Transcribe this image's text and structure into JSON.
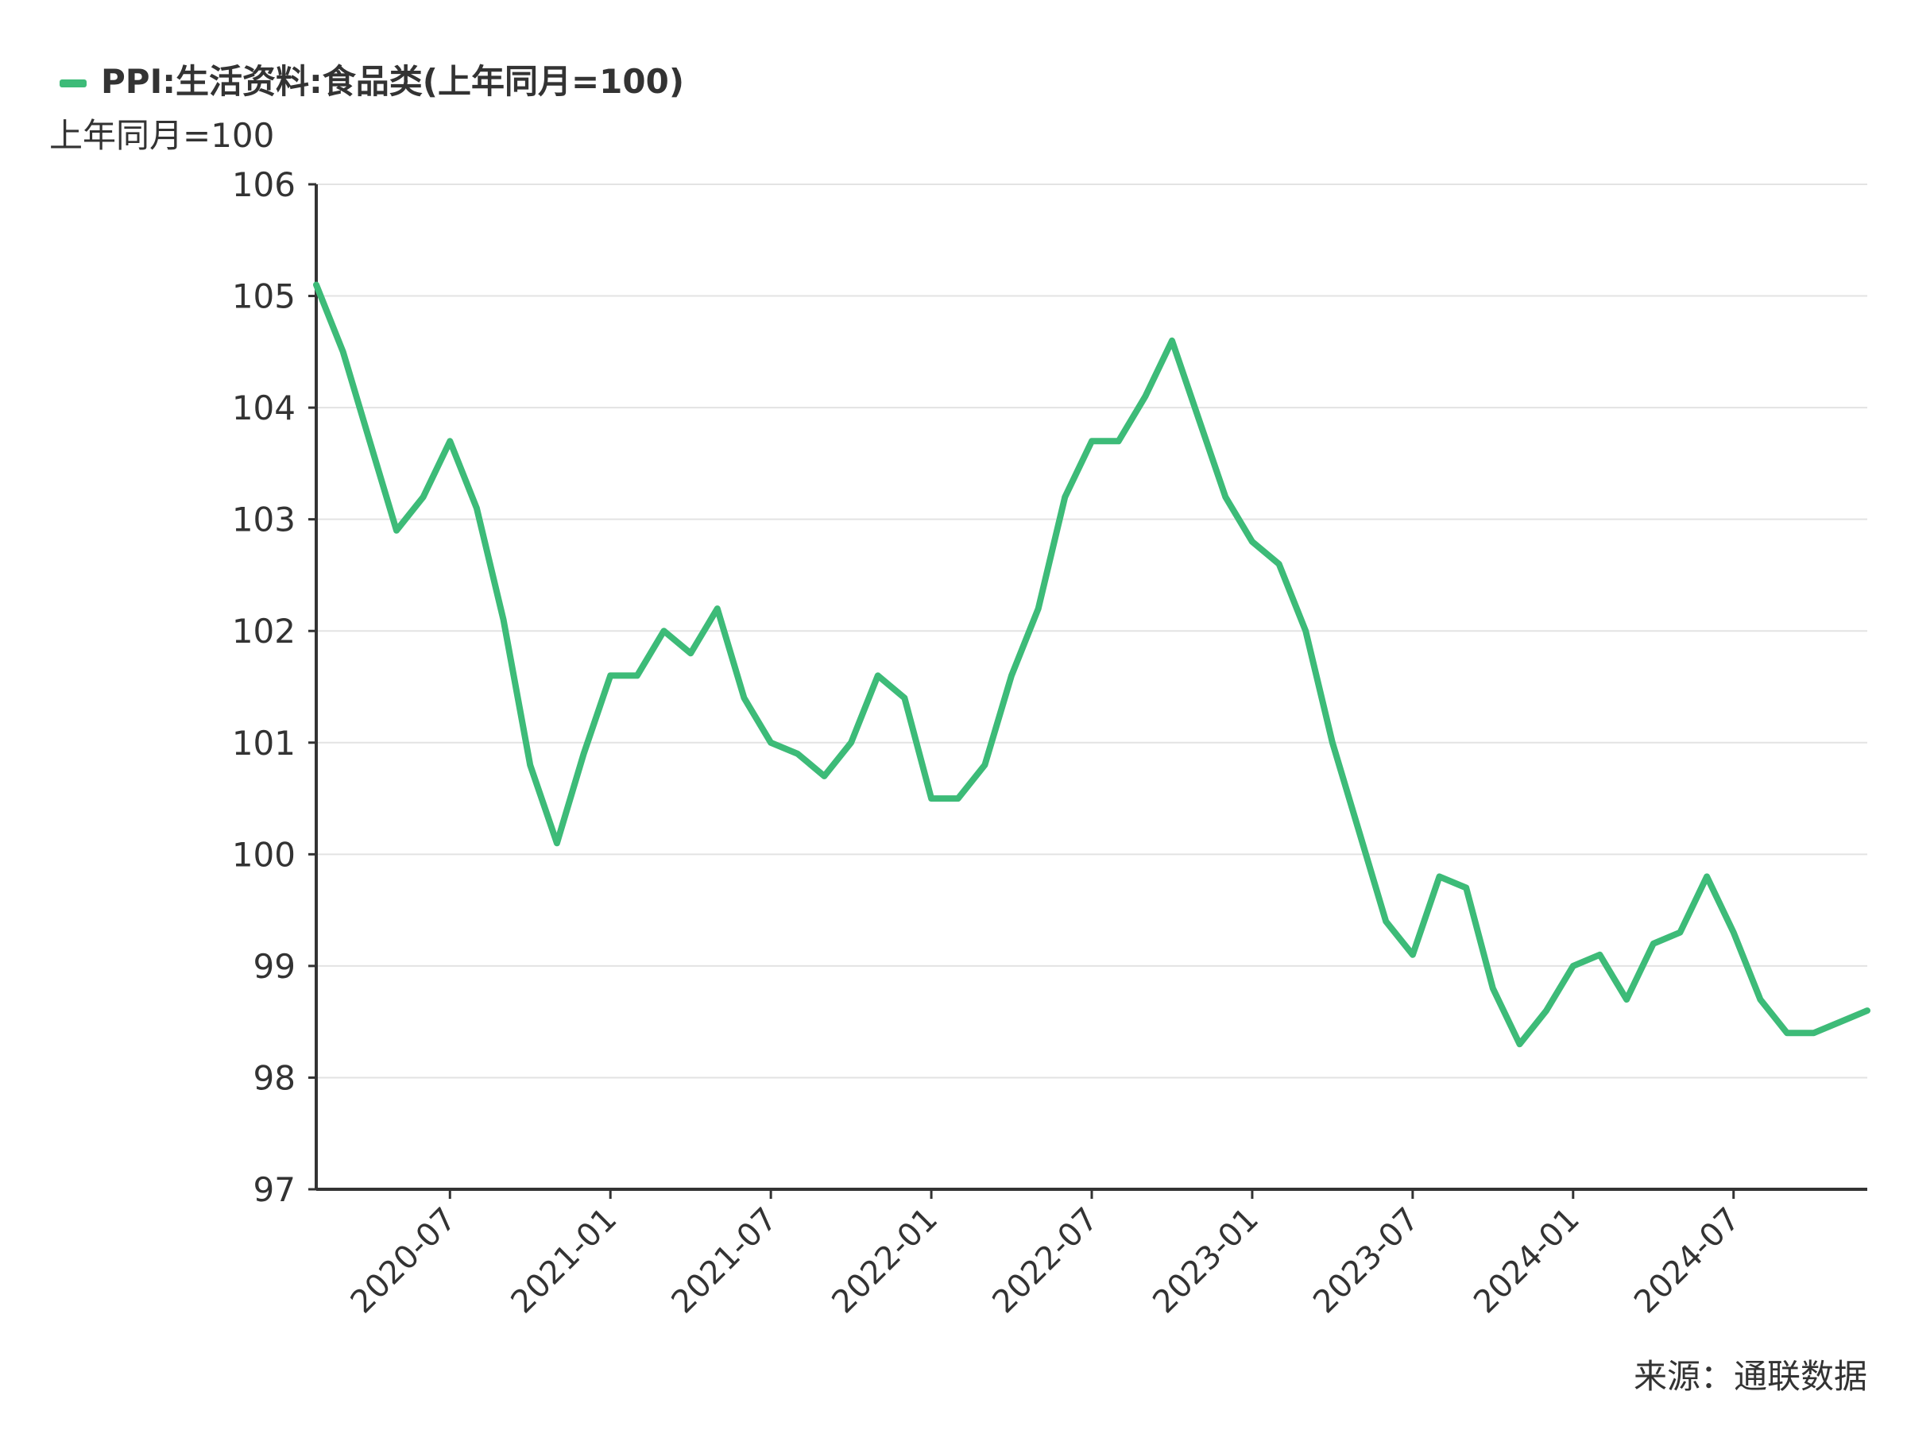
{
  "chart_data": {
    "type": "line",
    "title": "",
    "xlabel": "",
    "ylabel": "上年同月=100",
    "ylim": [
      97,
      106
    ],
    "yticks": [
      97,
      98,
      99,
      100,
      101,
      102,
      103,
      104,
      105,
      106
    ],
    "xticks": [
      "2020-07",
      "2021-01",
      "2021-07",
      "2022-01",
      "2022-07",
      "2023-01",
      "2023-07",
      "2024-01",
      "2024-07"
    ],
    "x": [
      "2020-02",
      "2020-03",
      "2020-04",
      "2020-05",
      "2020-06",
      "2020-07",
      "2020-08",
      "2020-09",
      "2020-10",
      "2020-11",
      "2020-12",
      "2021-01",
      "2021-02",
      "2021-03",
      "2021-04",
      "2021-05",
      "2021-06",
      "2021-07",
      "2021-08",
      "2021-09",
      "2021-10",
      "2021-11",
      "2021-12",
      "2022-01",
      "2022-02",
      "2022-03",
      "2022-04",
      "2022-05",
      "2022-06",
      "2022-07",
      "2022-08",
      "2022-09",
      "2022-10",
      "2022-11",
      "2022-12",
      "2023-01",
      "2023-02",
      "2023-03",
      "2023-04",
      "2023-05",
      "2023-06",
      "2023-07",
      "2023-08",
      "2023-09",
      "2023-10",
      "2023-11",
      "2023-12",
      "2024-01",
      "2024-02",
      "2024-03",
      "2024-04",
      "2024-05",
      "2024-06",
      "2024-07",
      "2024-08",
      "2024-09",
      "2024-10",
      "2024-11",
      "2024-12"
    ],
    "series": [
      {
        "name": "PPI:生活资料:食品类(上年同月=100)",
        "color": "#3dbb78",
        "values": [
          105.1,
          104.5,
          103.7,
          102.9,
          103.2,
          103.7,
          103.1,
          102.1,
          100.8,
          100.1,
          100.9,
          101.6,
          101.6,
          102.0,
          101.8,
          102.2,
          101.4,
          101.0,
          100.9,
          100.7,
          101.0,
          101.6,
          101.4,
          100.5,
          100.5,
          100.8,
          101.6,
          102.2,
          103.2,
          103.7,
          103.7,
          104.1,
          104.6,
          103.9,
          103.2,
          102.8,
          102.6,
          102.0,
          101.0,
          100.2,
          99.4,
          99.1,
          99.8,
          99.7,
          98.8,
          98.3,
          98.6,
          99.0,
          99.1,
          98.7,
          99.2,
          99.3,
          99.8,
          99.3,
          98.7,
          98.4,
          98.4,
          98.5,
          98.6
        ]
      }
    ],
    "legend_position": "top-left",
    "grid": true,
    "source": "来源：通联数据"
  }
}
